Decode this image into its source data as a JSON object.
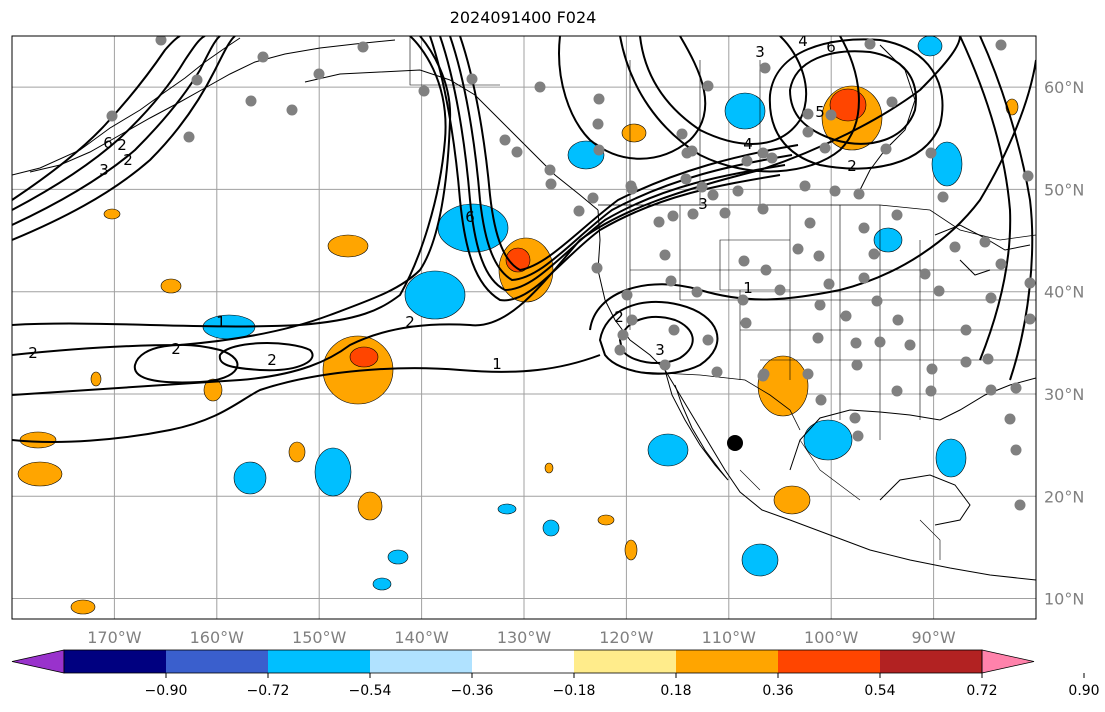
{
  "title": "2024091400 F024",
  "map": {
    "projection": "PlateCarree",
    "lon_range": [
      -180,
      -80
    ],
    "lat_range": [
      8,
      65
    ],
    "grid": true,
    "lon_ticks": [
      {
        "v": -170,
        "label": "170°W"
      },
      {
        "v": -160,
        "label": "160°W"
      },
      {
        "v": -150,
        "label": "150°W"
      },
      {
        "v": -140,
        "label": "140°W"
      },
      {
        "v": -130,
        "label": "130°W"
      },
      {
        "v": -120,
        "label": "120°W"
      },
      {
        "v": -110,
        "label": "110°W"
      },
      {
        "v": -100,
        "label": "100°W"
      },
      {
        "v": -90,
        "label": "90°W"
      }
    ],
    "lat_ticks": [
      {
        "v": 60,
        "label": "60°N"
      },
      {
        "v": 50,
        "label": "50°N"
      },
      {
        "v": 40,
        "label": "40°N"
      },
      {
        "v": 30,
        "label": "30°N"
      },
      {
        "v": 20,
        "label": "20°N"
      },
      {
        "v": 10,
        "label": "10°N"
      }
    ]
  },
  "colorbar": {
    "colors": [
      "#9932CC",
      "#000080",
      "#3A5FCD",
      "#00BFFF",
      "#B0E2FF",
      "#FFFFFF",
      "#FFEC8B",
      "#FFA500",
      "#FF4500",
      "#B22222",
      "#FF82AB"
    ],
    "ticks": [
      "−0.90",
      "−0.72",
      "−0.54",
      "−0.36",
      "−0.18",
      "0.18",
      "0.36",
      "0.54",
      "0.72",
      "0.90"
    ],
    "extend": "both"
  },
  "contour_labels": [
    "2",
    "2",
    "2",
    "1",
    "2",
    "1",
    "6",
    "2",
    "2",
    "3",
    "2",
    "3",
    "1",
    "4",
    "3",
    "3",
    "4",
    "6",
    "5",
    "2",
    "6"
  ],
  "station_marker": {
    "lon": -109.2,
    "lat": 25.3
  }
}
